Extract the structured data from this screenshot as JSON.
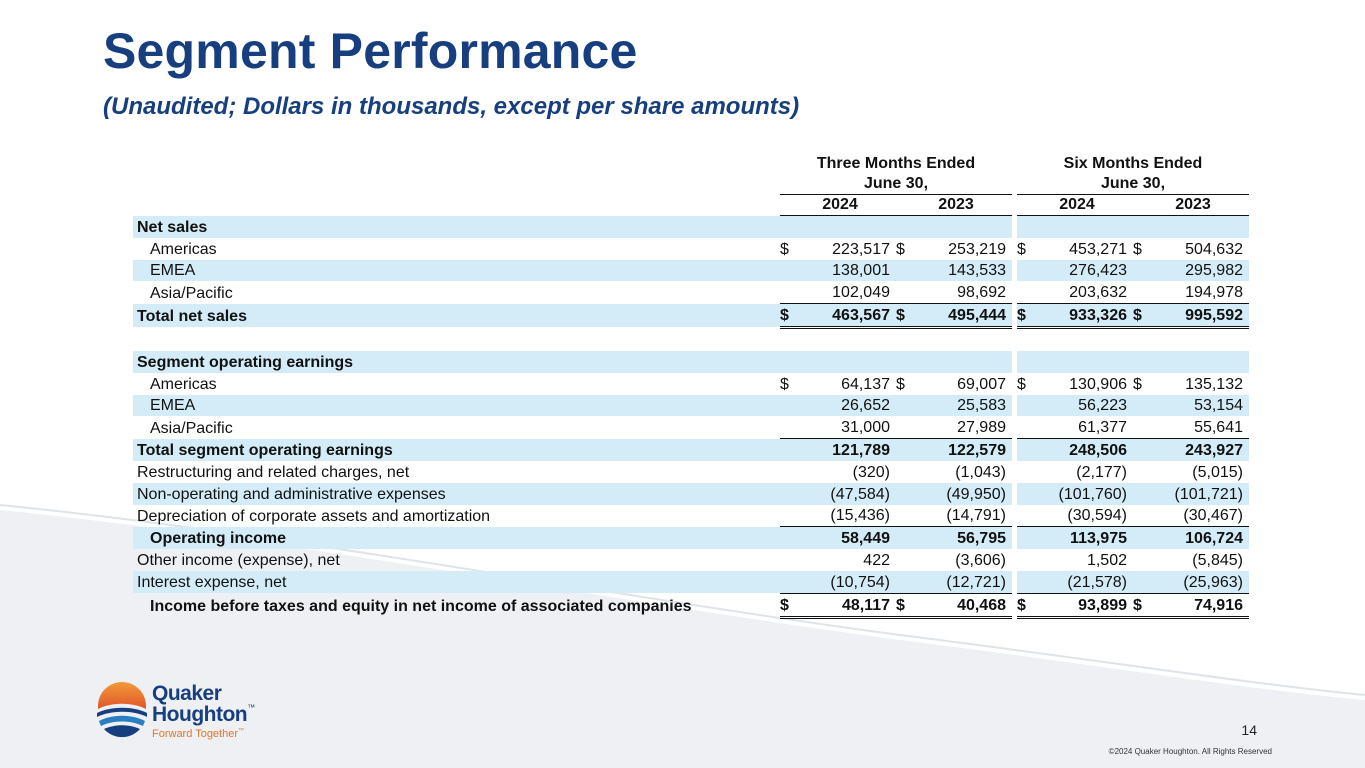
{
  "title": "Segment Performance",
  "subtitle": "(Unaudited; Dollars in thousands, except per share amounts)",
  "colors": {
    "title": "#173f7f",
    "row_shade": "#d4ecf8",
    "logo_blue": "#173f7f",
    "logo_orange": "#e8742a"
  },
  "header": {
    "group1_line1": "Three Months Ended",
    "group1_line2": "June 30,",
    "group2_line1": "Six Months Ended",
    "group2_line2": "June 30,",
    "years": [
      "2024",
      "2023",
      "2024",
      "2023"
    ]
  },
  "rows": [
    {
      "label": "Net sales",
      "style": "section",
      "shade": true,
      "values": []
    },
    {
      "label": "Americas",
      "indent": true,
      "shade": false,
      "dollar": true,
      "values": [
        "223,517",
        "253,219",
        "453,271",
        "504,632"
      ]
    },
    {
      "label": "EMEA",
      "indent": true,
      "shade": true,
      "values": [
        "138,001",
        "143,533",
        "276,423",
        "295,982"
      ]
    },
    {
      "label": "Asia/Pacific",
      "indent": true,
      "shade": false,
      "underline": "single",
      "values": [
        "102,049",
        "98,692",
        "203,632",
        "194,978"
      ]
    },
    {
      "label": "Total net sales",
      "bold": true,
      "shade": true,
      "dollar": true,
      "underline": "double",
      "values": [
        "463,567",
        "495,444",
        "933,326",
        "995,592"
      ]
    },
    {
      "label": "",
      "blank": true,
      "values": []
    },
    {
      "label": "Segment operating earnings",
      "style": "section",
      "shade": true,
      "values": []
    },
    {
      "label": "Americas",
      "indent": true,
      "shade": false,
      "dollar": true,
      "values": [
        "64,137",
        "69,007",
        "130,906",
        "135,132"
      ]
    },
    {
      "label": "EMEA",
      "indent": true,
      "shade": true,
      "values": [
        "26,652",
        "25,583",
        "56,223",
        "53,154"
      ]
    },
    {
      "label": "Asia/Pacific",
      "indent": true,
      "shade": false,
      "underline": "single",
      "values": [
        "31,000",
        "27,989",
        "61,377",
        "55,641"
      ]
    },
    {
      "label": "Total segment operating earnings",
      "bold": true,
      "shade": true,
      "values": [
        "121,789",
        "122,579",
        "248,506",
        "243,927"
      ]
    },
    {
      "label": "Restructuring and related charges, net",
      "shade": false,
      "values": [
        "(320)",
        "(1,043)",
        "(2,177)",
        "(5,015)"
      ]
    },
    {
      "label": "Non-operating and administrative expenses",
      "shade": true,
      "values": [
        "(47,584)",
        "(49,950)",
        "(101,760)",
        "(101,721)"
      ]
    },
    {
      "label": "Depreciation of corporate assets and amortization",
      "shade": false,
      "underline": "single",
      "values": [
        "(15,436)",
        "(14,791)",
        "(30,594)",
        "(30,467)"
      ]
    },
    {
      "label": "Operating income",
      "bold": true,
      "indent": true,
      "shade": true,
      "values": [
        "58,449",
        "56,795",
        "113,975",
        "106,724"
      ]
    },
    {
      "label": "Other income (expense), net",
      "shade": false,
      "values": [
        "422",
        "(3,606)",
        "1,502",
        "(5,845)"
      ]
    },
    {
      "label": "Interest expense, net",
      "shade": true,
      "underline": "single",
      "values": [
        "(10,754)",
        "(12,721)",
        "(21,578)",
        "(25,963)"
      ]
    },
    {
      "label": "Income before taxes and equity in net income of associated companies",
      "bold": true,
      "indent": true,
      "shade": false,
      "dollar": true,
      "underline": "double",
      "values": [
        "48,117",
        "40,468",
        "93,899",
        "74,916"
      ]
    }
  ],
  "currency_symbol": "$",
  "logo": {
    "icon": "quaker-houghton-logo-icon",
    "word1": "Quaker",
    "word2": "Houghton",
    "trademark": "™",
    "tagline": "Forward Together",
    "tagline_tm": "™"
  },
  "footer": {
    "page_number": "14",
    "copyright": "©2024 Quaker Houghton. All Rights Reserved"
  }
}
